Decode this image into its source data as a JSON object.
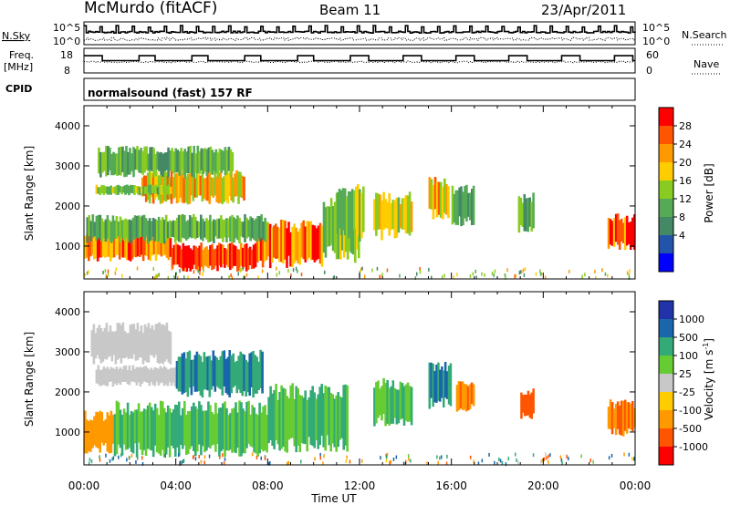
{
  "header": {
    "station": "McMurdo (fitACF)",
    "beam": "Beam 11",
    "date": "23/Apr/2011"
  },
  "summary_panels": {
    "nsky": {
      "label": "N.Sky",
      "right_label": "N.Search",
      "ticks_left": [
        "10^5",
        "10^0"
      ],
      "ticks_right": [
        "10^5",
        "10^0"
      ]
    },
    "freq": {
      "label_line1": "Freq.",
      "label_line2": "[MHz]",
      "right_label": "Nave",
      "ticks_left": [
        "18",
        "8"
      ],
      "ticks_right": [
        "60",
        "0"
      ]
    },
    "cpid": {
      "label": "CPID",
      "text": "normalsound (fast) 157 RF"
    }
  },
  "time_axis": {
    "title": "Time UT",
    "ticks": [
      "00:00",
      "04:00",
      "08:00",
      "12:00",
      "16:00",
      "20:00",
      "00:00"
    ]
  },
  "colorbars": {
    "power": {
      "title": "Power [dB]",
      "labels": [
        "28",
        "24",
        "20",
        "16",
        "12",
        "8",
        "4"
      ],
      "colors": [
        "#ff0000",
        "#ff5500",
        "#ff9900",
        "#ffcc00",
        "#88cc22",
        "#55aa55",
        "#448866",
        "#2255aa",
        "#0000ff"
      ]
    },
    "velocity": {
      "title": "Velocity [m s",
      "title_sup": "-1",
      "title_end": "]",
      "labels": [
        "1000",
        "500",
        "100",
        "25",
        "-25",
        "-100",
        "-500",
        "-1000"
      ],
      "colors": [
        "#2233aa",
        "#1a66aa",
        "#33aa77",
        "#66cc33",
        "#c8c8c8",
        "#ffcc00",
        "#ff9900",
        "#ff5500",
        "#ff0000"
      ]
    }
  },
  "chart_data": [
    {
      "type": "heatmap",
      "name": "power",
      "ylabel": "Slant Range [km]",
      "xlabel": "Time UT",
      "x_ticks": [
        "00:00",
        "04:00",
        "08:00",
        "12:00",
        "16:00",
        "20:00",
        "00:00"
      ],
      "y_ticks": [
        1000,
        2000,
        3000,
        4000
      ],
      "xlim_hours": [
        0,
        24
      ],
      "ylim_km": [
        180,
        4500
      ],
      "colorbar_title": "Power [dB]",
      "colorbar_ticks": [
        4,
        8,
        12,
        16,
        20,
        24,
        28
      ],
      "regions": [
        {
          "t0": 0.0,
          "t1": 3.8,
          "r0": 700,
          "r1": 1250,
          "value": 24
        },
        {
          "t0": 3.8,
          "t1": 7.5,
          "r0": 450,
          "r1": 1000,
          "value": 28
        },
        {
          "t0": 7.5,
          "t1": 10.4,
          "r0": 600,
          "r1": 1500,
          "value": 26
        },
        {
          "t0": 10.4,
          "t1": 12.0,
          "r0": 800,
          "r1": 2100,
          "value": 14
        },
        {
          "t0": 0.1,
          "t1": 8.0,
          "r0": 1150,
          "r1": 1700,
          "value": 12
        },
        {
          "t0": 2.5,
          "t1": 7.0,
          "r0": 2150,
          "r1": 2800,
          "value": 20
        },
        {
          "t0": 0.5,
          "t1": 3.8,
          "r0": 2300,
          "r1": 2500,
          "value": 14
        },
        {
          "t0": 0.6,
          "t1": 6.5,
          "r0": 2800,
          "r1": 3400,
          "value": 12
        },
        {
          "t0": 11.0,
          "t1": 12.2,
          "r0": 1300,
          "r1": 2400,
          "value": 14
        },
        {
          "t0": 12.6,
          "t1": 14.3,
          "r0": 1300,
          "r1": 2200,
          "value": 18
        },
        {
          "t0": 15.0,
          "t1": 15.9,
          "r0": 1800,
          "r1": 2600,
          "value": 20
        },
        {
          "t0": 16.0,
          "t1": 17.0,
          "r0": 1600,
          "r1": 2400,
          "value": 10
        },
        {
          "t0": 18.9,
          "t1": 19.6,
          "r0": 1400,
          "r1": 2200,
          "value": 12
        },
        {
          "t0": 22.8,
          "t1": 24.0,
          "r0": 1000,
          "r1": 1700,
          "value": 26
        }
      ]
    },
    {
      "type": "heatmap",
      "name": "velocity",
      "ylabel": "Slant Range [km]",
      "xlabel": "Time UT",
      "x_ticks": [
        "00:00",
        "04:00",
        "08:00",
        "12:00",
        "16:00",
        "20:00",
        "00:00"
      ],
      "y_ticks": [
        1000,
        2000,
        3000,
        4000
      ],
      "xlim_hours": [
        0,
        24
      ],
      "ylim_km": [
        180,
        4500
      ],
      "colorbar_title": "Velocity [m s-1]",
      "colorbar_ticks": [
        -1000,
        -500,
        -100,
        -25,
        25,
        100,
        500,
        1000
      ],
      "regions": [
        {
          "t0": 0.0,
          "t1": 1.3,
          "r0": 600,
          "r1": 1400,
          "value": -150
        },
        {
          "t0": 1.3,
          "t1": 8.0,
          "r0": 550,
          "r1": 1600,
          "value": 60
        },
        {
          "t0": 8.0,
          "t1": 11.5,
          "r0": 700,
          "r1": 2000,
          "value": 60
        },
        {
          "t0": 0.3,
          "t1": 3.8,
          "r0": 2800,
          "r1": 3600,
          "value": 0
        },
        {
          "t0": 0.5,
          "t1": 7.5,
          "r0": 2200,
          "r1": 2600,
          "value": 0
        },
        {
          "t0": 4.0,
          "t1": 7.8,
          "r0": 2000,
          "r1": 2900,
          "value": 300
        },
        {
          "t0": 12.6,
          "t1": 14.3,
          "r0": 1300,
          "r1": 2200,
          "value": 60
        },
        {
          "t0": 15.0,
          "t1": 16.0,
          "r0": 1700,
          "r1": 2600,
          "value": 300
        },
        {
          "t0": 16.2,
          "t1": 17.0,
          "r0": 1600,
          "r1": 2200,
          "value": -300
        },
        {
          "t0": 19.0,
          "t1": 19.6,
          "r0": 1400,
          "r1": 2000,
          "value": -400
        },
        {
          "t0": 22.8,
          "t1": 24.0,
          "r0": 1000,
          "r1": 1700,
          "value": -300
        }
      ]
    }
  ]
}
